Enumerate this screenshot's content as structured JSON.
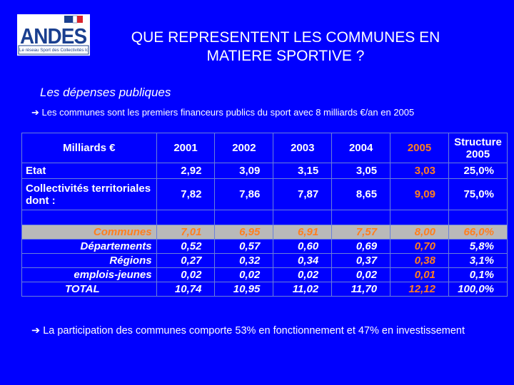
{
  "logo": {
    "name": "ANDES",
    "tagline": "Le réseau Sport des Collectivités locales",
    "colors": {
      "blue": "#1a3f8f",
      "red": "#d9232d"
    }
  },
  "title": "QUE REPRESENTENT LES COMMUNES EN MATIERE SPORTIVE ?",
  "subtitle": "Les dépenses publiques",
  "bullet_arrow": "➔",
  "bullet": "Les communes sont les premiers financeurs publics du sport avec 8 milliards €/an en 2005",
  "table": {
    "header": [
      "Milliards €",
      "2001",
      "2002",
      "2003",
      "2004",
      "2005",
      "Structure 2005"
    ],
    "rows": {
      "etat": [
        "Etat",
        "2,92",
        "3,09",
        "3,15",
        "3,05",
        "3,03",
        "25,0%"
      ],
      "collectivites": [
        "Collectivités territoriales dont :",
        "7,82",
        "7,86",
        "7,87",
        "8,65",
        "9,09",
        "75,0%"
      ],
      "communes": [
        "Communes",
        "7,01",
        "6,95",
        "6,91",
        "7,57",
        "8,00",
        "66,0%"
      ],
      "departements": [
        "Départements",
        "0,52",
        "0,57",
        "0,60",
        "0,69",
        "0,70",
        "5,8%"
      ],
      "regions": [
        "Régions",
        "0,27",
        "0,32",
        "0,34",
        "0,37",
        "0,38",
        "3,1%"
      ],
      "emplois": [
        "emplois-jeunes",
        "0,02",
        "0,02",
        "0,02",
        "0,02",
        "0,01",
        "0,1%"
      ],
      "total": [
        "TOTAL",
        "10,74",
        "10,95",
        "11,02",
        "11,70",
        "12,12",
        "100,0%"
      ]
    }
  },
  "note_arrow": "➔",
  "note": "La participation des communes comporte 53% en fonctionnement et 47% en investissement",
  "colors": {
    "background": "#0000FF",
    "highlight": "#ff7f1f",
    "row_highlight": "#b9b9b9"
  }
}
